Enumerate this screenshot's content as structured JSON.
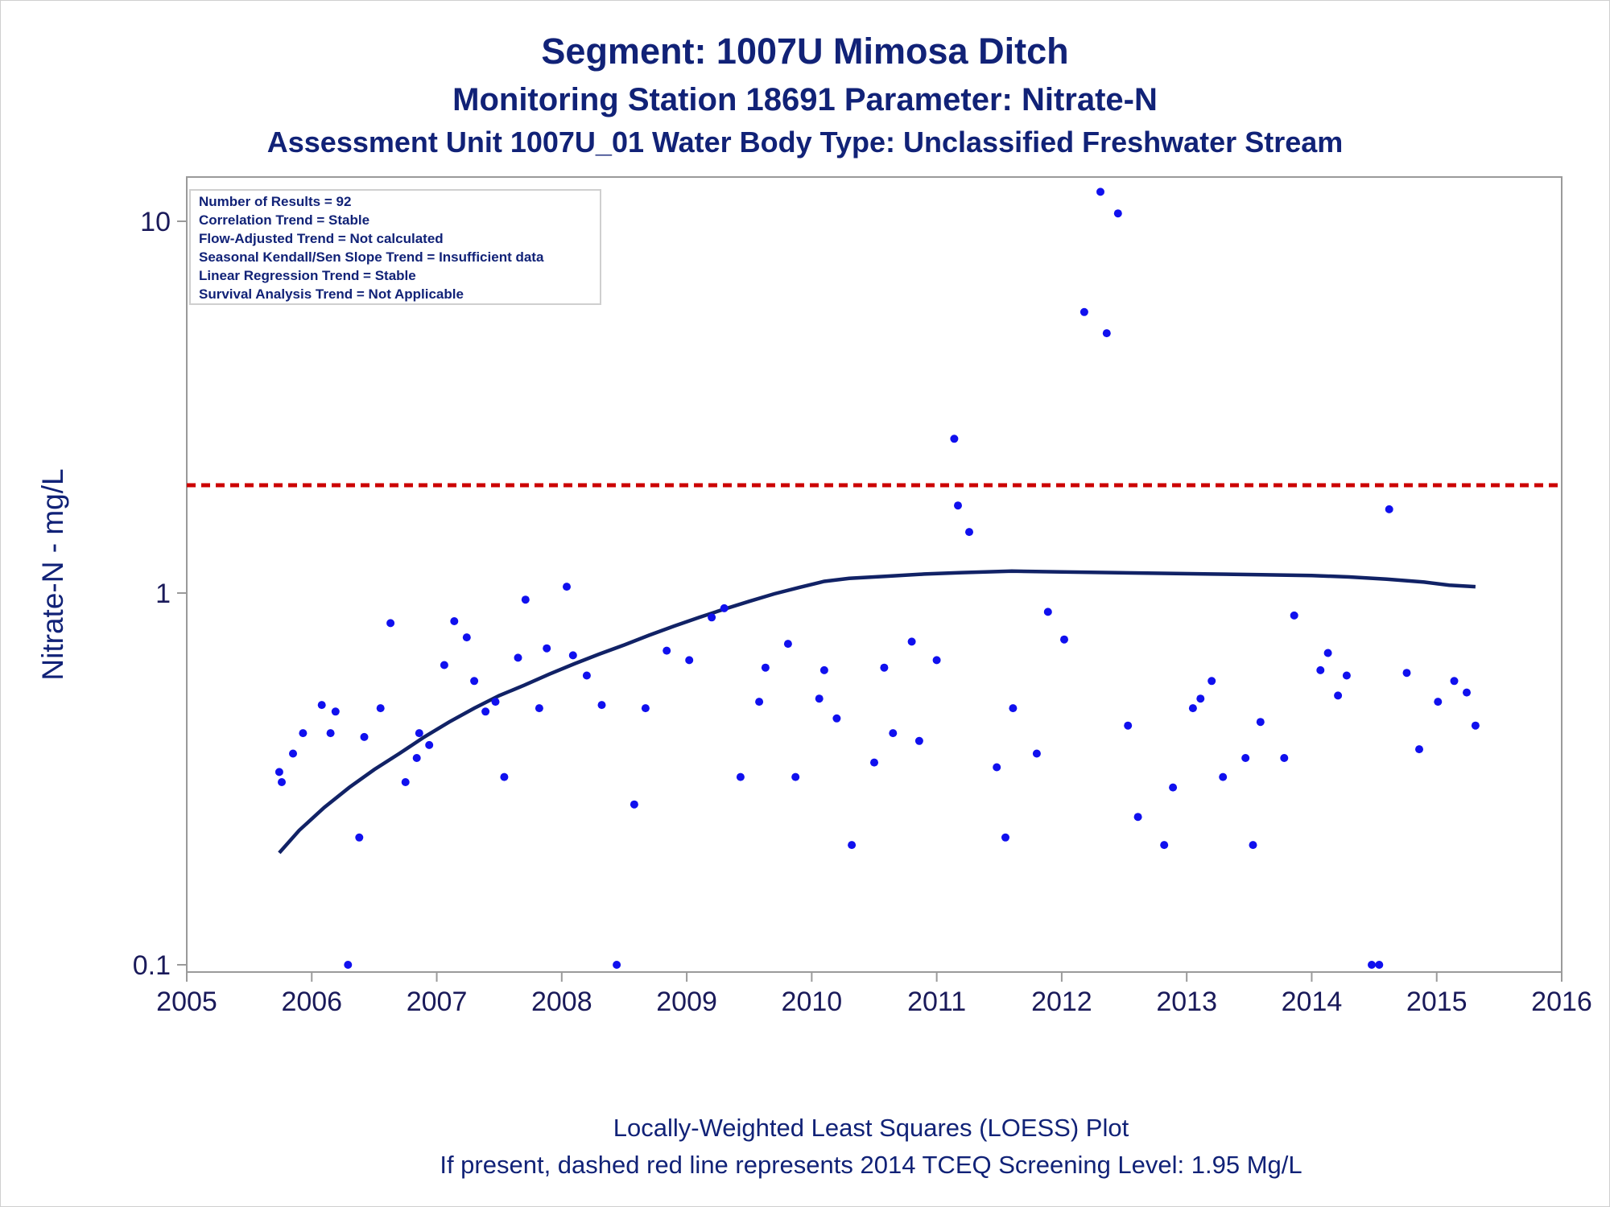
{
  "titles": {
    "line1": "Segment: 1007U  Mimosa Ditch",
    "line2": "Monitoring Station 18691 Parameter: Nitrate-N",
    "line3": "Assessment Unit 1007U_01   Water Body Type: Unclassified Freshwater Stream"
  },
  "footnotes": {
    "line1": "Locally-Weighted Least Squares (LOESS) Plot",
    "line2": "If present, dashed red line represents 2014 TCEQ Screening Level: 1.95 Mg/L"
  },
  "stats_box": [
    "Number of Results = 92",
    "Correlation Trend = Stable",
    "Flow-Adjusted Trend = Not calculated",
    "Seasonal Kendall/Sen Slope Trend = Insufficient data",
    "Linear Regression Trend = Stable",
    "Survival Analysis Trend = Not Applicable"
  ],
  "colors": {
    "points": "#1010ee",
    "loess": "#112266",
    "screening": "#cc0000",
    "text": "#112277",
    "axis": "#9a9a9a"
  },
  "chart_data": {
    "type": "scatter",
    "ylabel": "Nitrate-N - mg/L",
    "xlabel": "",
    "x_scale": "time (years)",
    "y_scale": "log",
    "xlim": [
      2005,
      2016
    ],
    "ylim": [
      0.1,
      13
    ],
    "x_ticks": [
      "2005",
      "2006",
      "2007",
      "2008",
      "2009",
      "2010",
      "2011",
      "2012",
      "2013",
      "2014",
      "2015",
      "2016"
    ],
    "y_ticks": [
      "0.1",
      "1",
      "10"
    ],
    "screening_level": {
      "value": 1.95,
      "style": "dashed"
    },
    "points": [
      [
        2005.74,
        0.33
      ],
      [
        2005.76,
        0.31
      ],
      [
        2005.85,
        0.37
      ],
      [
        2005.93,
        0.42
      ],
      [
        2006.08,
        0.5
      ],
      [
        2006.15,
        0.42
      ],
      [
        2006.19,
        0.48
      ],
      [
        2006.29,
        0.1
      ],
      [
        2006.38,
        0.22
      ],
      [
        2006.42,
        0.41
      ],
      [
        2006.55,
        0.49
      ],
      [
        2006.63,
        0.83
      ],
      [
        2006.75,
        0.31
      ],
      [
        2006.84,
        0.36
      ],
      [
        2006.86,
        0.42
      ],
      [
        2006.94,
        0.39
      ],
      [
        2007.06,
        0.64
      ],
      [
        2007.14,
        0.84
      ],
      [
        2007.24,
        0.76
      ],
      [
        2007.3,
        0.58
      ],
      [
        2007.39,
        0.48
      ],
      [
        2007.47,
        0.51
      ],
      [
        2007.54,
        0.32
      ],
      [
        2007.65,
        0.67
      ],
      [
        2007.71,
        0.96
      ],
      [
        2007.82,
        0.49
      ],
      [
        2007.88,
        0.71
      ],
      [
        2008.04,
        1.04
      ],
      [
        2008.09,
        0.68
      ],
      [
        2008.2,
        0.6
      ],
      [
        2008.32,
        0.5
      ],
      [
        2008.44,
        0.1
      ],
      [
        2008.58,
        0.27
      ],
      [
        2008.67,
        0.49
      ],
      [
        2008.84,
        0.7
      ],
      [
        2009.02,
        0.66
      ],
      [
        2009.2,
        0.86
      ],
      [
        2009.3,
        0.91
      ],
      [
        2009.43,
        0.32
      ],
      [
        2009.58,
        0.51
      ],
      [
        2009.63,
        0.63
      ],
      [
        2009.81,
        0.73
      ],
      [
        2009.87,
        0.32
      ],
      [
        2010.06,
        0.52
      ],
      [
        2010.1,
        0.62
      ],
      [
        2010.2,
        0.46
      ],
      [
        2010.32,
        0.21
      ],
      [
        2010.5,
        0.35
      ],
      [
        2010.58,
        0.63
      ],
      [
        2010.65,
        0.42
      ],
      [
        2010.8,
        0.74
      ],
      [
        2010.86,
        0.4
      ],
      [
        2011.0,
        0.66
      ],
      [
        2011.14,
        2.6
      ],
      [
        2011.17,
        1.72
      ],
      [
        2011.26,
        1.46
      ],
      [
        2011.48,
        0.34
      ],
      [
        2011.55,
        0.22
      ],
      [
        2011.61,
        0.49
      ],
      [
        2011.8,
        0.37
      ],
      [
        2011.89,
        0.89
      ],
      [
        2012.02,
        0.75
      ],
      [
        2012.18,
        5.7
      ],
      [
        2012.31,
        12.0
      ],
      [
        2012.36,
        5.0
      ],
      [
        2012.45,
        10.5
      ],
      [
        2012.53,
        0.44
      ],
      [
        2012.61,
        0.25
      ],
      [
        2012.82,
        0.21
      ],
      [
        2012.89,
        0.3
      ],
      [
        2013.05,
        0.49
      ],
      [
        2013.11,
        0.52
      ],
      [
        2013.2,
        0.58
      ],
      [
        2013.29,
        0.32
      ],
      [
        2013.47,
        0.36
      ],
      [
        2013.53,
        0.21
      ],
      [
        2013.59,
        0.45
      ],
      [
        2013.78,
        0.36
      ],
      [
        2013.86,
        0.87
      ],
      [
        2014.07,
        0.62
      ],
      [
        2014.13,
        0.69
      ],
      [
        2014.21,
        0.53
      ],
      [
        2014.28,
        0.6
      ],
      [
        2014.48,
        0.1
      ],
      [
        2014.54,
        0.1
      ],
      [
        2014.62,
        1.68
      ],
      [
        2014.76,
        0.61
      ],
      [
        2014.86,
        0.38
      ],
      [
        2015.01,
        0.51
      ],
      [
        2015.14,
        0.58
      ],
      [
        2015.24,
        0.54
      ],
      [
        2015.31,
        0.44
      ]
    ],
    "loess": [
      [
        2005.74,
        0.2
      ],
      [
        2005.9,
        0.23
      ],
      [
        2006.1,
        0.265
      ],
      [
        2006.3,
        0.3
      ],
      [
        2006.5,
        0.335
      ],
      [
        2006.7,
        0.37
      ],
      [
        2006.9,
        0.41
      ],
      [
        2007.1,
        0.45
      ],
      [
        2007.3,
        0.49
      ],
      [
        2007.5,
        0.53
      ],
      [
        2007.7,
        0.565
      ],
      [
        2007.9,
        0.605
      ],
      [
        2008.1,
        0.645
      ],
      [
        2008.3,
        0.685
      ],
      [
        2008.5,
        0.725
      ],
      [
        2008.7,
        0.77
      ],
      [
        2008.9,
        0.815
      ],
      [
        2009.1,
        0.86
      ],
      [
        2009.3,
        0.905
      ],
      [
        2009.5,
        0.95
      ],
      [
        2009.7,
        0.995
      ],
      [
        2009.9,
        1.035
      ],
      [
        2010.1,
        1.075
      ],
      [
        2010.3,
        1.095
      ],
      [
        2010.6,
        1.11
      ],
      [
        2010.9,
        1.125
      ],
      [
        2011.2,
        1.135
      ],
      [
        2011.6,
        1.145
      ],
      [
        2012.0,
        1.14
      ],
      [
        2012.4,
        1.135
      ],
      [
        2012.8,
        1.13
      ],
      [
        2013.2,
        1.125
      ],
      [
        2013.6,
        1.12
      ],
      [
        2014.0,
        1.115
      ],
      [
        2014.3,
        1.105
      ],
      [
        2014.6,
        1.09
      ],
      [
        2014.9,
        1.07
      ],
      [
        2015.1,
        1.05
      ],
      [
        2015.31,
        1.04
      ]
    ]
  }
}
